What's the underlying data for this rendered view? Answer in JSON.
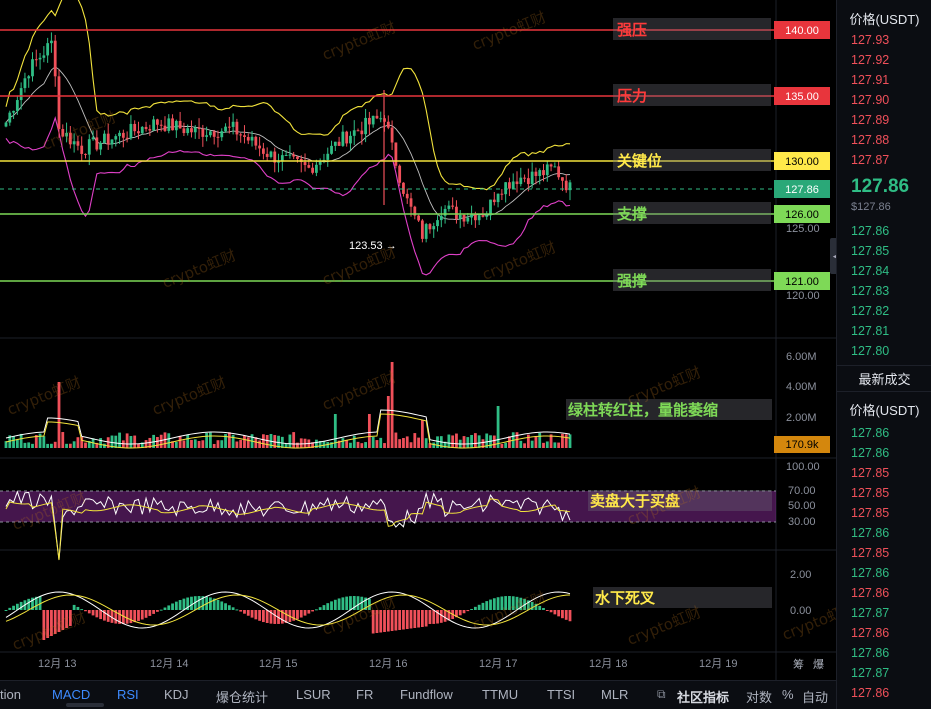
{
  "level_lines": [
    {
      "label": "强压",
      "price": "140.00",
      "label_color": "#ff3b3b",
      "line_color": "#e8353c",
      "tag_bg": "#e8353c"
    },
    {
      "label": "压力",
      "price": "135.00",
      "label_color": "#ff3b3b",
      "line_color": "#e8353c",
      "tag_bg": "#e8353c"
    },
    {
      "label": "关键位",
      "price": "130.00",
      "label_color": "#ffe94a",
      "line_color": "#f2e33c",
      "tag_bg": "#ffe94a"
    },
    {
      "label": "支撑",
      "price": "126.00",
      "label_color": "#7ed957",
      "line_color": "#7ed957",
      "tag_bg": "#7ed957"
    },
    {
      "label": "强撑",
      "price": "121.00",
      "label_color": "#7ed957",
      "line_color": "#7ed957",
      "tag_bg": "#7ed957"
    }
  ],
  "current_price_tag": "127.86",
  "price_axis_ticks": [
    "125.00",
    "120.00"
  ],
  "low_marker": "123.53 →",
  "annotations": {
    "volume": "绿柱转红柱，量能萎缩",
    "rsi": "卖盘大于买盘",
    "macd": "水下死叉"
  },
  "volume_axis": [
    "6.00M",
    "4.00M",
    "2.00M"
  ],
  "volume_tag": "170.9k",
  "rsi_axis": [
    "100.00",
    "70.00",
    "50.00",
    "30.00"
  ],
  "macd_axis": [
    "2.00",
    "0.00"
  ],
  "date_labels": [
    "12月 13",
    "12月 14",
    "12月 15",
    "12月 16",
    "12月 17",
    "12月 18",
    "12月 19"
  ],
  "axis_corner": {
    "left": "筹",
    "right": "爆"
  },
  "bottom_tabs": [
    "tion",
    "MACD",
    "RSI",
    "KDJ",
    "爆仓统计",
    "LSUR",
    "FR",
    "Fundflow",
    "TTMU",
    "TTSI",
    "MLR"
  ],
  "bottom_right": {
    "community": "社区指标",
    "log": "对数",
    "pct": "%",
    "auto": "自动"
  },
  "right_panel": {
    "header": "价格(USDT)",
    "asks": [
      {
        "price": "127.93",
        "side": "sell"
      },
      {
        "price": "127.92",
        "side": "sell"
      },
      {
        "price": "127.91",
        "side": "sell"
      },
      {
        "price": "127.90",
        "side": "sell"
      },
      {
        "price": "127.89",
        "side": "sell"
      },
      {
        "price": "127.88",
        "side": "sell"
      },
      {
        "price": "127.87",
        "side": "sell"
      }
    ],
    "last_price": "127.86",
    "last_price_sub": "$127.86",
    "bids": [
      {
        "price": "127.86",
        "side": "buy"
      },
      {
        "price": "127.85",
        "side": "buy"
      },
      {
        "price": "127.84",
        "side": "buy"
      },
      {
        "price": "127.83",
        "side": "buy"
      },
      {
        "price": "127.82",
        "side": "buy"
      },
      {
        "price": "127.81",
        "side": "buy"
      },
      {
        "price": "127.80",
        "side": "buy"
      }
    ],
    "trades_tab": "最新成交",
    "trades_header": "价格(USDT)",
    "trades": [
      {
        "price": "127.86",
        "side": "buy"
      },
      {
        "price": "127.86",
        "side": "buy"
      },
      {
        "price": "127.85",
        "side": "sell"
      },
      {
        "price": "127.85",
        "side": "sell"
      },
      {
        "price": "127.85",
        "side": "sell"
      },
      {
        "price": "127.86",
        "side": "buy"
      },
      {
        "price": "127.85",
        "side": "sell"
      },
      {
        "price": "127.86",
        "side": "buy"
      },
      {
        "price": "127.86",
        "side": "sell"
      },
      {
        "price": "127.87",
        "side": "buy"
      },
      {
        "price": "127.86",
        "side": "sell"
      },
      {
        "price": "127.86",
        "side": "buy"
      },
      {
        "price": "127.87",
        "side": "buy"
      },
      {
        "price": "127.86",
        "side": "sell"
      }
    ]
  },
  "watermark_text": "crypto虹财",
  "colors": {
    "up": "#2fbd85",
    "down": "#f0505a",
    "accent": "#3d8bff"
  }
}
